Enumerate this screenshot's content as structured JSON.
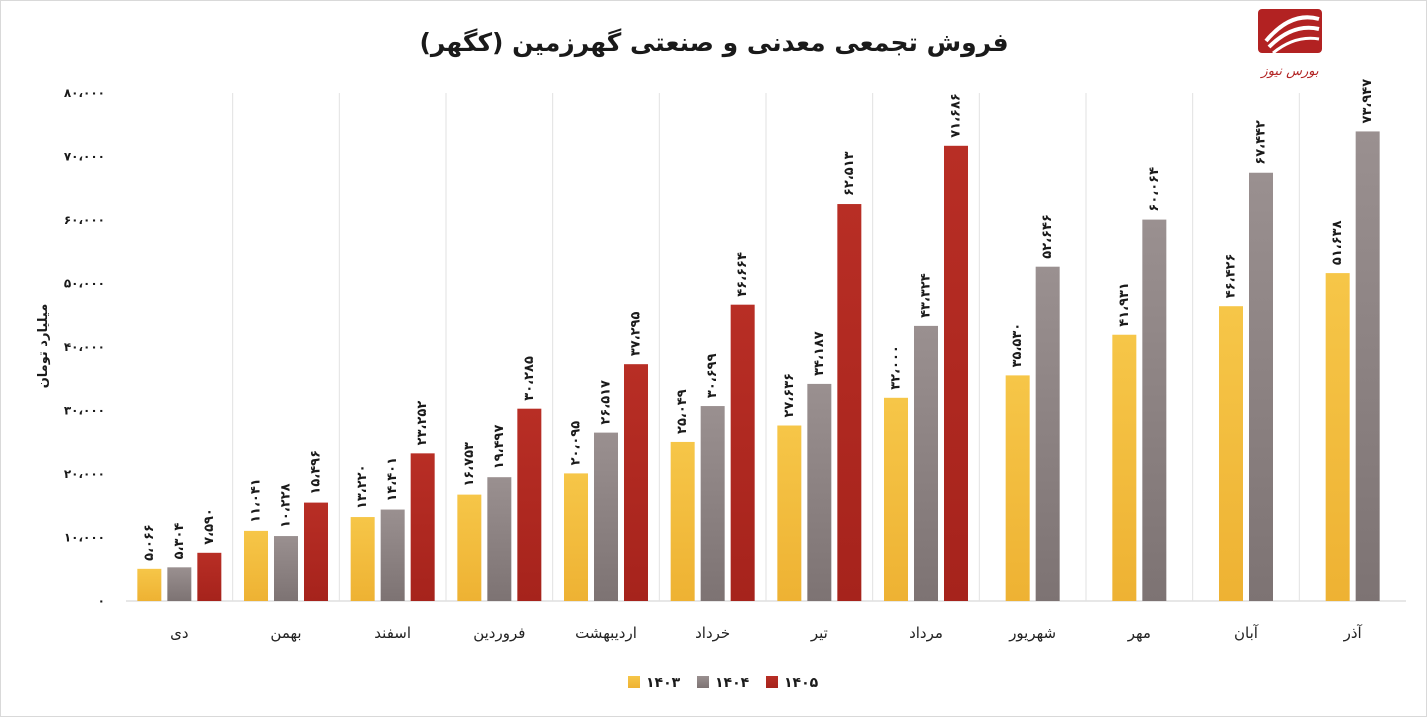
{
  "chart_data": {
    "type": "bar",
    "title": "فروش تجمعی معدنی و صنعتی گهرزمین (کگهر)",
    "ylabel": "میلیارد تومان",
    "xlabel": "",
    "ylim": [
      0,
      80000
    ],
    "yticks": [
      0,
      10000,
      20000,
      30000,
      40000,
      50000,
      60000,
      70000,
      80000
    ],
    "ytick_labels": [
      "۰",
      "۱۰،۰۰۰",
      "۲۰،۰۰۰",
      "۳۰،۰۰۰",
      "۴۰،۰۰۰",
      "۵۰،۰۰۰",
      "۶۰،۰۰۰",
      "۷۰،۰۰۰",
      "۸۰،۰۰۰"
    ],
    "grid": "vertical separators between categories",
    "legend_position": "bottom",
    "categories": [
      "دی",
      "بهمن",
      "اسفند",
      "فروردین",
      "اردیبهشت",
      "خرداد",
      "تیر",
      "مرداد",
      "شهریور",
      "مهر",
      "آبان",
      "آذر"
    ],
    "series": [
      {
        "name": "۱۴۰۳",
        "color": "#f2bb3f",
        "values": [
          5066,
          11041,
          13220,
          16753,
          20095,
          25049,
          27636,
          32000,
          35530,
          41931,
          46426,
          51638
        ],
        "labels": [
          "۵،۰۶۶",
          "۱۱،۰۴۱",
          "۱۳،۲۲۰",
          "۱۶،۷۵۳",
          "۲۰،۰۹۵",
          "۲۵،۰۴۹",
          "۲۷،۶۳۶",
          "۳۲،۰۰۰",
          "۳۵،۵۳۰",
          "۴۱،۹۳۱",
          "۴۶،۴۲۶",
          "۵۱،۶۳۸"
        ]
      },
      {
        "name": "۱۴۰۴",
        "color": "#8e8484",
        "values": [
          5304,
          10228,
          14401,
          19497,
          26517,
          30699,
          34187,
          43324,
          52646,
          60064,
          67442,
          73947
        ],
        "labels": [
          "۵،۳۰۴",
          "۱۰،۲۲۸",
          "۱۴،۴۰۱",
          "۱۹،۴۹۷",
          "۲۶،۵۱۷",
          "۳۰،۶۹۹",
          "۳۴،۱۸۷",
          "۴۳،۳۲۴",
          "۵۲،۶۴۶",
          "۶۰،۰۶۴",
          "۶۷،۴۴۲",
          "۷۳،۹۴۷"
        ]
      },
      {
        "name": "۱۴۰۵",
        "color": "#b22a22",
        "values": [
          7590,
          15496,
          23252,
          30285,
          37295,
          46664,
          62513,
          71686,
          null,
          null,
          null,
          null
        ],
        "labels": [
          "۷،۵۹۰",
          "۱۵،۴۹۶",
          "۲۳،۲۵۲",
          "۳۰،۲۸۵",
          "۳۷،۲۹۵",
          "۴۶،۶۶۴",
          "۶۲،۵۱۳",
          "۷۱،۶۸۶",
          "",
          "",
          "",
          ""
        ]
      }
    ]
  },
  "logo": {
    "text": "بورس نیوز",
    "color": "#b22222"
  }
}
